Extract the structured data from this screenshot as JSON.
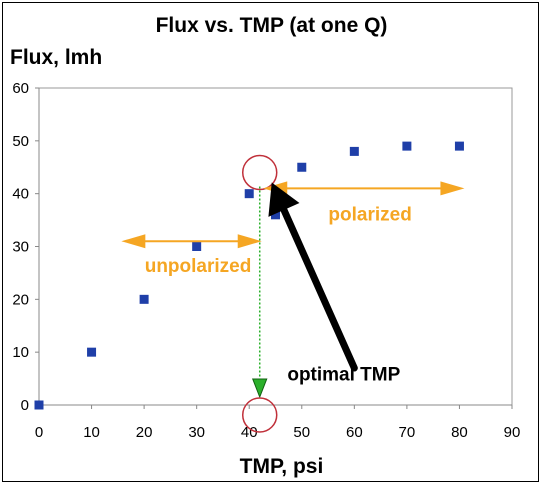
{
  "chart_data": {
    "type": "scatter",
    "title": "Flux vs. TMP (at one Q)",
    "xlabel": "TMP, psi",
    "ylabel": "Flux, lmh",
    "xlim": [
      0,
      90
    ],
    "ylim": [
      0,
      60
    ],
    "x_ticks": [
      "0",
      "10",
      "20",
      "30",
      "40",
      "50",
      "60",
      "70",
      "80",
      "90"
    ],
    "y_ticks": [
      "0",
      "10",
      "20",
      "30",
      "40",
      "50",
      "60"
    ],
    "points": [
      {
        "x": 0,
        "y": 0
      },
      {
        "x": 10,
        "y": 10
      },
      {
        "x": 20,
        "y": 20
      },
      {
        "x": 30,
        "y": 30
      },
      {
        "x": 40,
        "y": 40
      },
      {
        "x": 45,
        "y": 36
      },
      {
        "x": 50,
        "y": 45
      },
      {
        "x": 60,
        "y": 48
      },
      {
        "x": 70,
        "y": 49
      },
      {
        "x": 80,
        "y": 49
      }
    ],
    "marker_color": "#1F3FA8",
    "grid": false,
    "annotations": {
      "unpolarized": "unpolarized",
      "polarized": "polarized",
      "optimal": "optimal TMP",
      "optimal_point": {
        "x": 42,
        "y": 44
      },
      "optimal_axis_point": {
        "x": 42,
        "y": 0
      },
      "unpolarized_range": [
        17,
        42
      ],
      "polarized_range": [
        44,
        80
      ],
      "unpolarized_y": 31,
      "polarized_y": 41
    },
    "colors": {
      "annotation_orange": "#F5A623",
      "circle_red": "#C0303A",
      "guide_green": "#2BB02B",
      "arrow_black": "#000000"
    }
  }
}
